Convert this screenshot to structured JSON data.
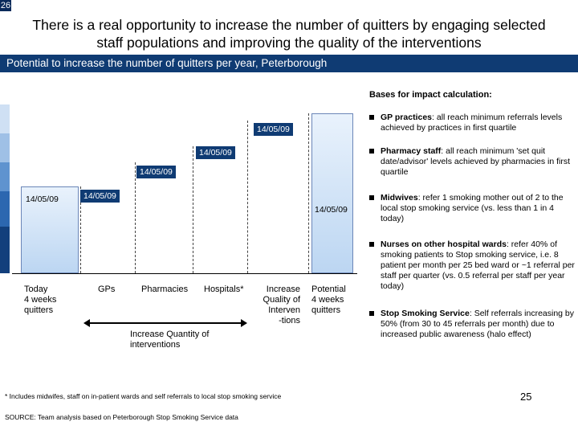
{
  "slide": {
    "corner_number": "26",
    "title": "There is a real opportunity to increase the number of quitters by engaging selected staff populations and improving the quality of the interventions",
    "subtitle": "Potential to increase the number of quitters per year, Peterborough",
    "page_number": "25"
  },
  "chart_data": {
    "type": "bar",
    "categories": [
      "Today 4 weeks quitters",
      "GPs",
      "Pharmacies",
      "Hospitals*",
      "Increase Quality of Interven -tions",
      "Potential 4 weeks quitters"
    ],
    "data_labels": [
      "14/05/09",
      "14/05/09",
      "14/05/09",
      "14/05/09",
      "14/05/09",
      "14/05/09"
    ],
    "group_label": "Increase Quantity of interventions",
    "axis_categories": {
      "today": "Today\n4 weeks\nquitters",
      "gps": "GPs",
      "pharmacies": "Pharmacies",
      "hospitals": "Hospitals*",
      "quality": "Increase\nQuality of\nInterven\n-tions",
      "potential": "Potential\n4 weeks\nquitters"
    }
  },
  "bases": {
    "title": "Bases for impact calculation:",
    "items": [
      {
        "bold": "GP practices",
        "text": ": all reach minimum referrals levels achieved by practices in first quartile"
      },
      {
        "bold": "Pharmacy staff",
        "text": ": all reach minimum 'set quit date/advisor' levels achieved by pharmacies in first quartile"
      },
      {
        "bold": "Midwives",
        "text": ": refer 1 smoking mother out of 2 to the local stop smoking service (vs. less than 1 in 4 today)"
      },
      {
        "bold": "Nurses on other hospital wards",
        "text": ": refer 40% of smoking patients to Stop smoking service, i.e. 8 patient per month per 25 bed ward or ~1 referral per staff per quarter (vs. 0.5 referral per staff per year today)"
      },
      {
        "bold": "Stop Smoking Service",
        "text": ": Self referrals increasing by 50% (from 30 to 45 referrals per month) due to increased public awareness (halo effect)"
      }
    ]
  },
  "footnote": "* Includes midwifes, staff on in-patient wards and self referrals to local stop smoking service",
  "source": "SOURCE: Team analysis based on Peterborough Stop Smoking Service data"
}
